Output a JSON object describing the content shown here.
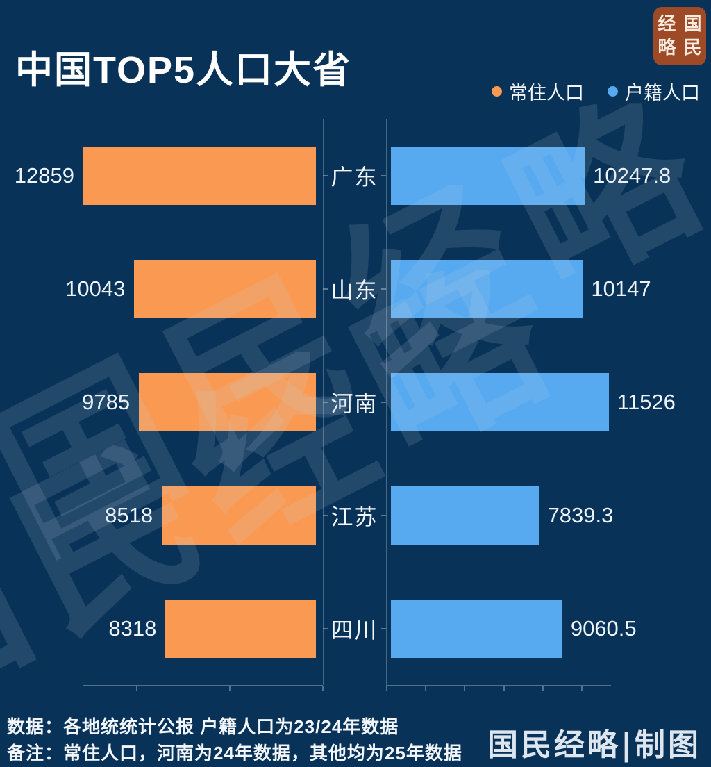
{
  "header": {
    "title": "中国TOP5人口大省"
  },
  "logo": {
    "text": "国民经略",
    "grid_chars": [
      "经",
      "国",
      "略",
      "民"
    ],
    "bg_color": "#9E4A26"
  },
  "legend": {
    "items": [
      {
        "label": "常住人口",
        "color": "#FA9A52"
      },
      {
        "label": "户籍人口",
        "color": "#57A9F0"
      }
    ]
  },
  "chart_data": {
    "type": "bar",
    "orientation": "horizontal_butterfly",
    "title": "中国TOP5人口大省",
    "categories": [
      "广东",
      "山东",
      "河南",
      "江苏",
      "四川"
    ],
    "series": [
      {
        "name": "常住人口",
        "side": "left",
        "color": "#FA9A52",
        "values": [
          12859,
          10043,
          9785,
          8518,
          8318
        ]
      },
      {
        "name": "户籍人口",
        "side": "right",
        "color": "#57A9F0",
        "values": [
          10247.8,
          10147,
          11526,
          7839.3,
          9060.5
        ]
      }
    ],
    "left_axis": {
      "max": 12859,
      "ticks": [
        0,
        5000,
        10000
      ]
    },
    "right_axis": {
      "max": 11526,
      "ticks": [
        0,
        2000,
        4000,
        6000,
        8000,
        10000
      ]
    },
    "grid": false,
    "legend_position": "top-right"
  },
  "watermark": {
    "text": "国民经略"
  },
  "footer": {
    "note1": "数据：各地统统计公报  户籍人口为23/24年数据",
    "note2": "备注：常住人口，河南为24年数据，其他均为25年数据",
    "credit": "国民经略|制图"
  },
  "colors": {
    "background": "#083257",
    "resident_bar": "#FA9A52",
    "registered_bar": "#57A9F0",
    "axis_line": "#ACC0D4"
  }
}
